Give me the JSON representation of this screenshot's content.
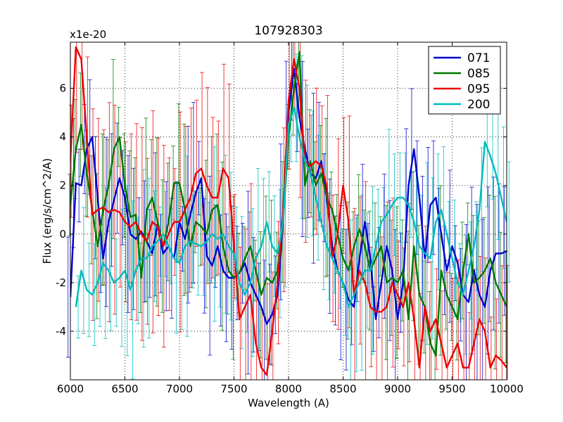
{
  "chart_data": {
    "type": "line",
    "title": "107928303",
    "xlabel": "Wavelength (A)",
    "ylabel": "Flux (erg/s/cm^2/A)",
    "y_multiplier": "x1e-20",
    "xlim": [
      6000,
      10000
    ],
    "ylim": [
      -6,
      7.9
    ],
    "x_ticks": [
      6000,
      6500,
      7000,
      7500,
      8000,
      8500,
      9000,
      9500,
      10000
    ],
    "y_ticks": [
      -4,
      -2,
      0,
      2,
      4,
      6
    ],
    "grid": true,
    "legend_position": "top-right",
    "series": [
      {
        "name": "071",
        "color": "#0000cc",
        "x": [
          6000,
          6050,
          6100,
          6150,
          6200,
          6250,
          6300,
          6350,
          6400,
          6450,
          6500,
          6550,
          6600,
          6650,
          6700,
          6750,
          6800,
          6850,
          6900,
          6950,
          7000,
          7050,
          7100,
          7150,
          7200,
          7250,
          7300,
          7350,
          7400,
          7450,
          7500,
          7550,
          7600,
          7650,
          7700,
          7750,
          7800,
          7850,
          7900,
          7950,
          8000,
          8050,
          8100,
          8150,
          8200,
          8250,
          8300,
          8350,
          8400,
          8450,
          8500,
          8550,
          8600,
          8650,
          8700,
          8750,
          8800,
          8850,
          8900,
          8950,
          9000,
          9050,
          9100,
          9150,
          9200,
          9250,
          9300,
          9350,
          9400,
          9450,
          9500,
          9550,
          9600,
          9650,
          9700,
          9750,
          9800,
          9850,
          9900,
          9950,
          10000
        ],
        "values": [
          -2.6,
          2.1,
          2.0,
          3.5,
          4.0,
          1.5,
          -1.0,
          0.5,
          1.4,
          2.3,
          1.5,
          0.0,
          -0.2,
          0.1,
          -0.3,
          -0.8,
          0.4,
          -0.8,
          -0.5,
          -1.0,
          0.5,
          -0.2,
          0.8,
          1.7,
          2.3,
          -0.9,
          -1.3,
          -0.5,
          -1.5,
          -1.8,
          -1.8,
          -1.6,
          -1.2,
          -2.0,
          -2.5,
          -3.0,
          -3.7,
          -3.3,
          -2.5,
          0.5,
          5.0,
          6.8,
          4.8,
          3.5,
          2.5,
          2.3,
          3.0,
          1.5,
          -0.5,
          -1.5,
          -2.0,
          -2.7,
          -3.0,
          -1.0,
          0.5,
          -1.0,
          -3.5,
          -2.0,
          -0.5,
          -1.5,
          -3.5,
          -2.0,
          2.0,
          3.5,
          1.5,
          -1.0,
          1.2,
          1.5,
          0.0,
          -1.5,
          -0.5,
          -1.2,
          -2.5,
          -2.8,
          -1.5,
          -2.5,
          -3.0,
          -1.5,
          -0.8,
          -0.8,
          -0.7
        ]
      },
      {
        "name": "085",
        "color": "#007700",
        "x": [
          6000,
          6050,
          6100,
          6150,
          6200,
          6250,
          6300,
          6350,
          6400,
          6450,
          6500,
          6550,
          6600,
          6650,
          6700,
          6750,
          6800,
          6850,
          6900,
          6950,
          7000,
          7050,
          7100,
          7150,
          7200,
          7250,
          7300,
          7350,
          7400,
          7450,
          7500,
          7550,
          7600,
          7650,
          7700,
          7750,
          7800,
          7850,
          7900,
          7950,
          8000,
          8050,
          8100,
          8150,
          8200,
          8250,
          8300,
          8350,
          8400,
          8450,
          8500,
          8550,
          8600,
          8650,
          8700,
          8750,
          8800,
          8850,
          8900,
          8950,
          9000,
          9050,
          9100,
          9150,
          9200,
          9250,
          9300,
          9350,
          9400,
          9450,
          9500,
          9550,
          9600,
          9650,
          9700,
          9750,
          9800,
          9850,
          9900,
          9950,
          10000
        ],
        "values": [
          1.2,
          3.5,
          4.5,
          2.5,
          1.0,
          -0.5,
          1.0,
          2.0,
          3.5,
          4.0,
          2.0,
          0.7,
          0.8,
          -1.8,
          1.0,
          1.5,
          0.5,
          -0.5,
          0.5,
          2.1,
          2.1,
          1.0,
          -0.5,
          0.5,
          0.3,
          0.0,
          1.0,
          1.2,
          -0.5,
          -1.5,
          -1.8,
          -1.6,
          -1.0,
          -0.5,
          -1.5,
          -2.5,
          -1.8,
          -2.0,
          -1.5,
          0.5,
          4.0,
          6.0,
          7.5,
          2.0,
          3.0,
          2.0,
          2.5,
          1.5,
          1.0,
          0.0,
          -1.0,
          -1.5,
          -0.5,
          0.2,
          -0.5,
          -1.5,
          -1.0,
          -0.5,
          -2.0,
          -1.8,
          -2.0,
          -1.5,
          -3.5,
          -0.5,
          -2.5,
          -3.0,
          -4.5,
          -5.0,
          -1.5,
          -2.5,
          -3.0,
          -3.5,
          -1.5,
          0.0,
          -2.0,
          -1.8,
          -1.5,
          -1.0,
          -2.0,
          -2.5,
          -3.0
        ]
      },
      {
        "name": "095",
        "color": "#ee0000",
        "x": [
          6000,
          6050,
          6100,
          6150,
          6200,
          6250,
          6300,
          6350,
          6400,
          6450,
          6500,
          6550,
          6600,
          6650,
          6700,
          6750,
          6800,
          6850,
          6900,
          6950,
          7000,
          7050,
          7100,
          7150,
          7200,
          7250,
          7300,
          7350,
          7400,
          7450,
          7500,
          7550,
          7600,
          7650,
          7700,
          7750,
          7800,
          7850,
          7900,
          7950,
          8000,
          8050,
          8100,
          8150,
          8200,
          8250,
          8300,
          8350,
          8400,
          8450,
          8500,
          8550,
          8600,
          8650,
          8700,
          8750,
          8800,
          8850,
          8900,
          8950,
          9000,
          9050,
          9100,
          9150,
          9200,
          9250,
          9300,
          9350,
          9400,
          9450,
          9500,
          9550,
          9600,
          9650,
          9700,
          9750,
          9800,
          9850,
          9900,
          9950,
          10000
        ],
        "values": [
          3.0,
          7.7,
          7.2,
          4.0,
          0.8,
          1.0,
          1.1,
          0.9,
          1.0,
          0.9,
          0.5,
          0.3,
          0.5,
          0.0,
          -0.3,
          0.5,
          0.3,
          -0.5,
          0.0,
          0.5,
          0.5,
          1.0,
          1.5,
          2.5,
          2.7,
          2.0,
          1.5,
          1.5,
          2.7,
          2.3,
          -0.5,
          -3.5,
          -3.0,
          -2.5,
          -4.5,
          -5.5,
          -5.8,
          -4.0,
          -2.0,
          1.0,
          5.5,
          7.2,
          6.0,
          3.0,
          2.8,
          3.0,
          2.8,
          2.0,
          -1.0,
          0.0,
          2.0,
          0.5,
          -2.5,
          -1.5,
          -2.0,
          -3.0,
          -3.2,
          -3.2,
          -3.0,
          -2.0,
          -2.5,
          -3.0,
          -2.0,
          -3.5,
          -5.5,
          -3.0,
          -4.0,
          -3.5,
          -4.5,
          -5.5,
          -5.0,
          -4.5,
          -5.5,
          -5.5,
          -4.5,
          -3.5,
          -4.0,
          -5.5,
          -5.0,
          -5.2,
          -5.5
        ]
      },
      {
        "name": "200",
        "color": "#00bbbb",
        "x": [
          6050,
          6100,
          6150,
          6200,
          6250,
          6300,
          6350,
          6400,
          6450,
          6500,
          6550,
          6600,
          6650,
          6700,
          6750,
          6800,
          6850,
          6900,
          6950,
          7000,
          7050,
          7100,
          7150,
          7200,
          7250,
          7300,
          7350,
          7400,
          7450,
          7500,
          7550,
          7600,
          7650,
          7700,
          7750,
          7800,
          7850,
          7900,
          7950,
          8000,
          8050,
          8100,
          8150,
          8200,
          8250,
          8300,
          8350,
          8400,
          8450,
          8500,
          8550,
          8600,
          8650,
          8700,
          8750,
          8800,
          8850,
          8900,
          8950,
          9000,
          9050,
          9100,
          9150,
          9200,
          9250,
          9300,
          9350,
          9400,
          9450,
          9500,
          9550,
          9600,
          9650,
          9700,
          9750,
          9800,
          9850,
          9900,
          9950,
          10000
        ],
        "values": [
          -3.0,
          -1.5,
          -2.3,
          -2.5,
          -2.0,
          -1.2,
          -1.5,
          -2.0,
          -1.8,
          -1.5,
          -2.3,
          -1.5,
          -1.0,
          -1.0,
          -0.5,
          -0.3,
          0.0,
          -0.5,
          -1.0,
          -1.2,
          -0.5,
          -0.3,
          -0.4,
          -0.5,
          -0.3,
          0.0,
          -0.2,
          0.0,
          -0.5,
          -0.8,
          -2.0,
          -2.5,
          -2.0,
          -1.0,
          -0.5,
          0.5,
          -0.5,
          -0.8,
          0.5,
          4.5,
          5.2,
          4.0,
          3.0,
          2.5,
          1.5,
          0.5,
          -0.5,
          -1.0,
          -1.5,
          -2.0,
          -3.0,
          -2.5,
          -2.0,
          -1.5,
          -1.5,
          -0.5,
          0.5,
          0.8,
          1.2,
          1.5,
          1.5,
          1.2,
          0.5,
          -0.5,
          -0.8,
          -1.0,
          0.5,
          1.0,
          0.0,
          -1.0,
          -2.0,
          -2.5,
          -1.5,
          -0.5,
          1.0,
          3.8,
          3.2,
          2.5,
          1.5,
          0.5
        ]
      }
    ]
  }
}
